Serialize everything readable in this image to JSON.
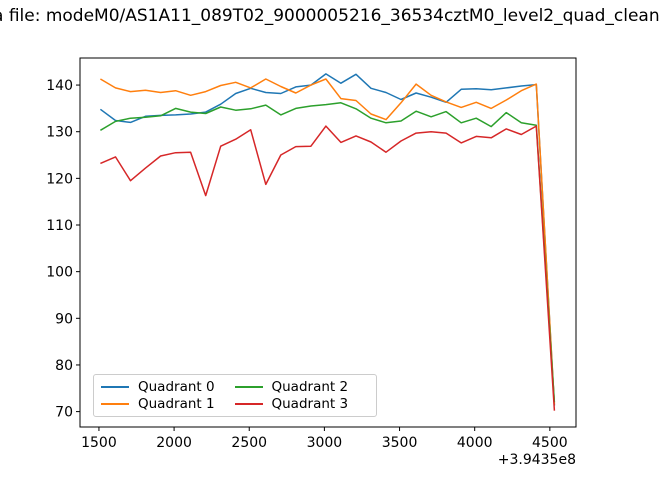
{
  "title": {
    "visible_text": "a file: modeM0/AS1A11_089T02_9000005216_36534cztM0_level2_quad_clean"
  },
  "chart_data": {
    "type": "line",
    "x": [
      1510,
      1610,
      1710,
      1810,
      1910,
      2010,
      2110,
      2210,
      2310,
      2410,
      2510,
      2610,
      2710,
      2810,
      2910,
      3010,
      3110,
      3210,
      3310,
      3410,
      3510,
      3610,
      3710,
      3810,
      3910,
      4010,
      4110,
      4210,
      4310,
      4410,
      4530
    ],
    "x_offset_label": "+3.9435e8",
    "xticks": [
      1500,
      2000,
      2500,
      3000,
      3500,
      4000,
      4500
    ],
    "yticks": [
      70,
      80,
      90,
      100,
      110,
      120,
      130,
      140
    ],
    "xlim": [
      1374,
      4674
    ],
    "ylim": [
      66.7,
      145.8
    ],
    "grid": false,
    "legend": {
      "position": "lower left",
      "ncols": 2
    },
    "series": [
      {
        "name": "Quadrant 0",
        "color": "#1f77b4",
        "values": [
          134.8,
          132.4,
          132.0,
          133.3,
          133.5,
          133.6,
          133.8,
          134.2,
          135.9,
          138.2,
          139.3,
          138.4,
          138.2,
          139.6,
          140.0,
          142.4,
          140.4,
          142.3,
          139.3,
          138.4,
          136.9,
          138.3,
          137.4,
          136.3,
          139.1,
          139.2,
          139.0,
          139.4,
          139.8,
          140.1,
          71.3
        ]
      },
      {
        "name": "Quadrant 1",
        "color": "#ff7f0e",
        "values": [
          141.3,
          139.4,
          138.6,
          138.9,
          138.4,
          138.8,
          137.8,
          138.6,
          139.9,
          140.6,
          139.4,
          141.3,
          139.7,
          138.3,
          140.0,
          141.3,
          137.1,
          136.7,
          133.8,
          132.6,
          136.2,
          140.2,
          137.8,
          136.4,
          135.2,
          136.3,
          135.0,
          136.8,
          138.8,
          140.2,
          71.5
        ]
      },
      {
        "name": "Quadrant 2",
        "color": "#2ca02c",
        "values": [
          130.3,
          132.2,
          132.9,
          133.1,
          133.4,
          135.0,
          134.2,
          133.9,
          135.3,
          134.6,
          134.9,
          135.7,
          133.6,
          135.0,
          135.5,
          135.8,
          136.2,
          134.9,
          132.9,
          131.9,
          132.3,
          134.4,
          133.2,
          134.3,
          131.9,
          132.9,
          131.1,
          134.1,
          131.9,
          131.4,
          72.0
        ]
      },
      {
        "name": "Quadrant 3",
        "color": "#d62728",
        "values": [
          123.2,
          124.6,
          119.5,
          122.2,
          124.8,
          125.5,
          125.6,
          116.3,
          126.9,
          128.4,
          130.4,
          118.7,
          125.0,
          126.8,
          126.9,
          131.2,
          127.7,
          129.1,
          127.8,
          125.6,
          128.0,
          129.7,
          130.0,
          129.7,
          127.6,
          129.0,
          128.7,
          130.6,
          129.4,
          131.2,
          70.2
        ]
      }
    ]
  },
  "colors": {
    "axis": "#000000",
    "legend_border": "#cccccc",
    "background": "#ffffff"
  }
}
